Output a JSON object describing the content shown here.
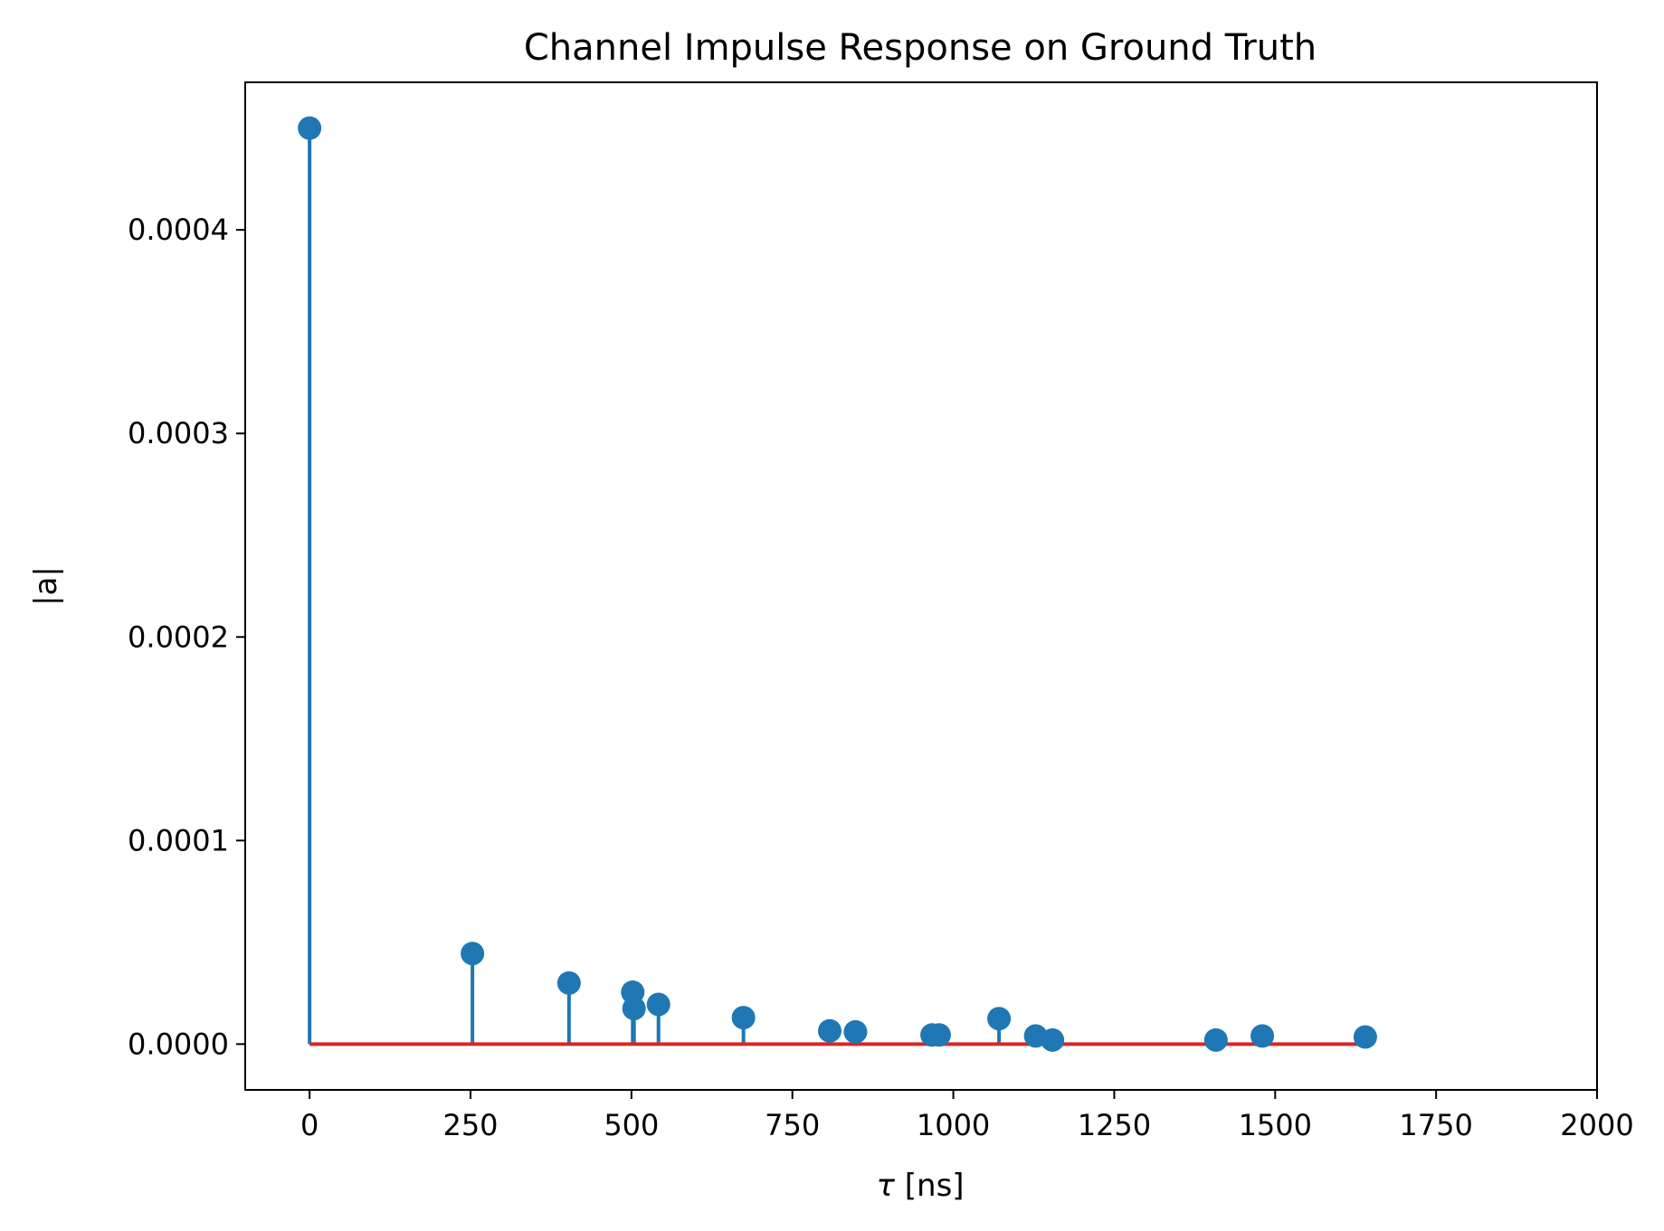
{
  "chart_data": {
    "type": "stem",
    "title": "Channel Impulse Response on Ground Truth",
    "xlabel_symbol": "τ",
    "xlabel_unit": "[ns]",
    "ylabel": "|a|",
    "xlim": [
      -100,
      2000
    ],
    "ylim": [
      -2.25e-05,
      0.0004725
    ],
    "x_ticks": [
      0,
      250,
      500,
      750,
      1000,
      1250,
      1500,
      1750,
      2000
    ],
    "x_tick_labels": [
      "0",
      "250",
      "500",
      "750",
      "1000",
      "1250",
      "1500",
      "1750",
      "2000"
    ],
    "y_ticks": [
      0,
      0.0001,
      0.0002,
      0.0003,
      0.0004
    ],
    "y_tick_labels": [
      "0.0000",
      "0.0001",
      "0.0002",
      "0.0003",
      "0.0004"
    ],
    "grid": false,
    "colors": {
      "stem": "#1f77b4",
      "baseline": "#d62728",
      "axes": "#000000"
    },
    "baseline_range": [
      0,
      1640
    ],
    "points": [
      {
        "x": 0,
        "y": 0.00045
      },
      {
        "x": 253,
        "y": 4.45e-05
      },
      {
        "x": 403,
        "y": 3e-05
      },
      {
        "x": 502,
        "y": 2.55e-05
      },
      {
        "x": 504,
        "y": 1.75e-05
      },
      {
        "x": 542,
        "y": 1.95e-05
      },
      {
        "x": 674,
        "y": 1.3e-05
      },
      {
        "x": 808,
        "y": 6.5e-06
      },
      {
        "x": 848,
        "y": 6e-06
      },
      {
        "x": 967,
        "y": 4.5e-06
      },
      {
        "x": 978,
        "y": 4.5e-06
      },
      {
        "x": 1071,
        "y": 1.25e-05
      },
      {
        "x": 1128,
        "y": 4e-06
      },
      {
        "x": 1154,
        "y": 2e-06
      },
      {
        "x": 1408,
        "y": 2e-06
      },
      {
        "x": 1480,
        "y": 4e-06
      },
      {
        "x": 1640,
        "y": 3.5e-06
      }
    ]
  }
}
